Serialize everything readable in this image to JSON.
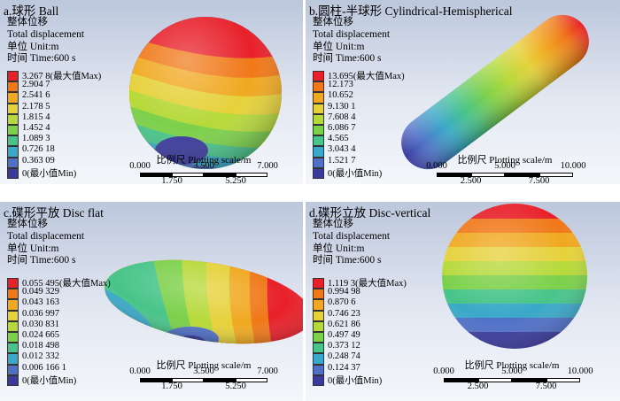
{
  "legend_colors": [
    "#e8202a",
    "#f07818",
    "#f0a820",
    "#e6d13a",
    "#b6d93a",
    "#7cd04a",
    "#48c48a",
    "#3aa8c8",
    "#5070c8",
    "#3a3a9c"
  ],
  "panels": [
    {
      "title": "a.球形 Ball",
      "info": [
        "整体位移",
        "Total displacement",
        "单位 Unit:m",
        "时间 Time:600 s"
      ],
      "legend": [
        "3.267 8(最大值Max)",
        "2.904 7",
        "2.541 6",
        "2.178 5",
        "1.815 4",
        "1.452 4",
        "1.089 3",
        "0.726 18",
        "0.363 09",
        "0(最小值Min)"
      ],
      "scale_label": "比例尺 Plotting scale/m",
      "scale_top": [
        "0.000",
        "3.500",
        "7.000"
      ],
      "scale_bottom": [
        "1.750",
        "5.250"
      ]
    },
    {
      "title": "b.圆柱-半球形 Cylindrical-Hemispherical",
      "info": [
        "整体位移",
        "Total displacement",
        "单位 Unit:m",
        "时间 Time:600 s"
      ],
      "legend": [
        "13.695(最大值Max)",
        "12.173",
        "10.652",
        "9.130 1",
        "7.608 4",
        "6.086 7",
        "4.565",
        "3.043 4",
        "1.521 7",
        "0(最小值Min)"
      ],
      "scale_label": "比例尺 Plotting scale/m",
      "scale_top": [
        "0.000",
        "5.000",
        "10.000"
      ],
      "scale_bottom": [
        "2.500",
        "7.500"
      ]
    },
    {
      "title": "c.碟形平放 Disc flat",
      "info": [
        "整体位移",
        "Total displacement",
        "单位 Unit:m",
        "时间 Time:600 s"
      ],
      "legend": [
        "0.055 495(最大值Max)",
        "0.049 329",
        "0.043 163",
        "0.036 997",
        "0.030 831",
        "0.024 665",
        "0.018 498",
        "0.012 332",
        "0.006 166 1",
        "0(最小值Min)"
      ],
      "scale_label": "比例尺 Plotting scale/m",
      "scale_top": [
        "0.000",
        "3.500",
        "7.000"
      ],
      "scale_bottom": [
        "1.750",
        "5.250"
      ]
    },
    {
      "title": "d.碟形立放 Disc-vertical",
      "info": [
        "整体位移",
        "Total displacement",
        "单位 Unit:m",
        "时间 Time:600 s"
      ],
      "legend": [
        "1.119 3(最大值Max)",
        "0.994 98",
        "0.870 6",
        "0.746 23",
        "0.621 86",
        "0.497 49",
        "0.373 12",
        "0.248 74",
        "0.124 37",
        "0(最小值Min)"
      ],
      "scale_label": "比例尺 Plotting scale/m",
      "scale_top": [
        "0.000",
        "5.000",
        "10.000"
      ],
      "scale_bottom": [
        "2.500",
        "7.500"
      ]
    }
  ]
}
